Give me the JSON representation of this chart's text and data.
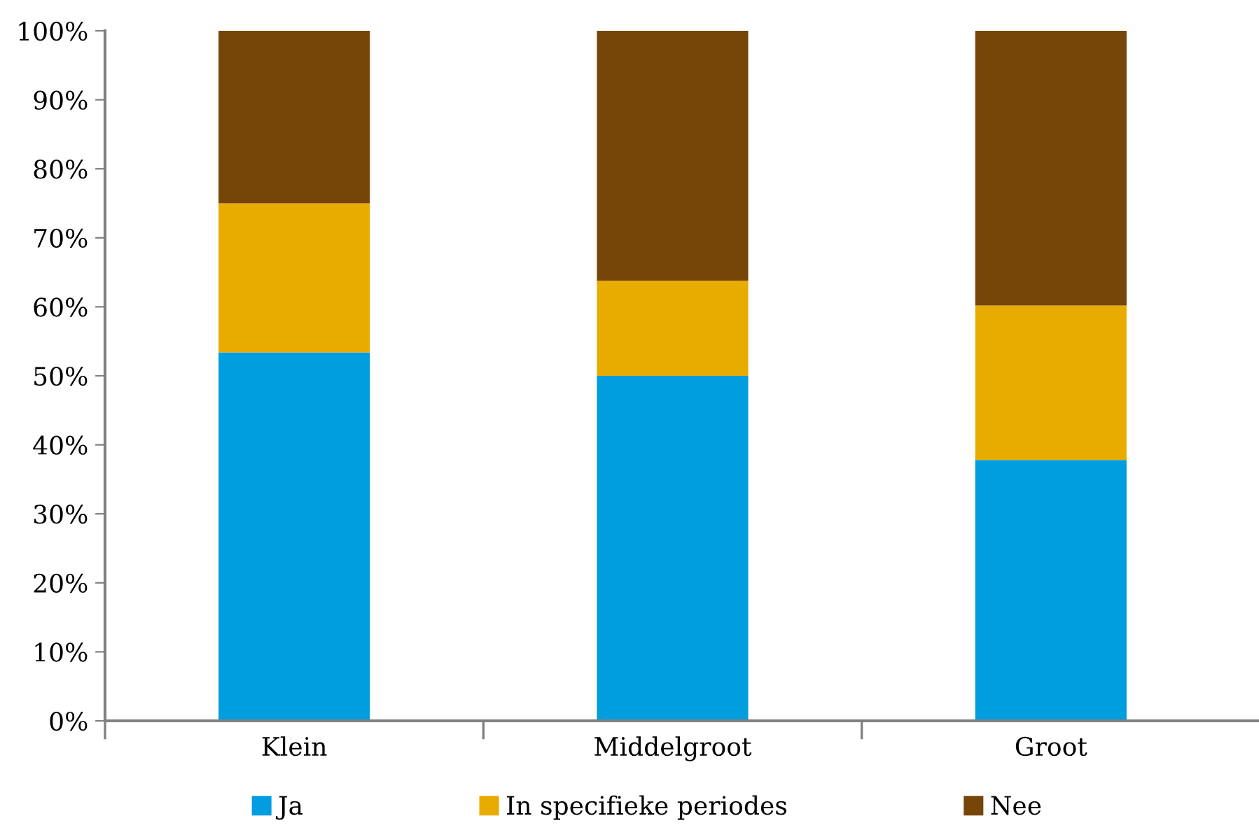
{
  "chart_data": {
    "type": "bar",
    "stacked": true,
    "categories": [
      "Klein",
      "Middelgroot",
      "Groot"
    ],
    "series": [
      {
        "name": "Ja",
        "color": "#009ddf",
        "values": [
          53.4,
          50.0,
          37.8
        ]
      },
      {
        "name": "In specifieke periodes",
        "color": "#e8ab00",
        "values": [
          21.6,
          13.8,
          22.4
        ]
      },
      {
        "name": "Nee",
        "color": "#764508",
        "values": [
          25.0,
          36.2,
          39.8
        ]
      }
    ],
    "ylim": [
      0,
      100
    ],
    "yticks": [
      {
        "value": 0,
        "label": "0%"
      },
      {
        "value": 10,
        "label": "10%"
      },
      {
        "value": 20,
        "label": "20%"
      },
      {
        "value": 30,
        "label": "30%"
      },
      {
        "value": 40,
        "label": "40%"
      },
      {
        "value": 50,
        "label": "50%"
      },
      {
        "value": 60,
        "label": "60%"
      },
      {
        "value": 70,
        "label": "70%"
      },
      {
        "value": 80,
        "label": "80%"
      },
      {
        "value": 90,
        "label": "90%"
      },
      {
        "value": 100,
        "label": "100%"
      }
    ],
    "grid": false,
    "legend": "bottom"
  }
}
